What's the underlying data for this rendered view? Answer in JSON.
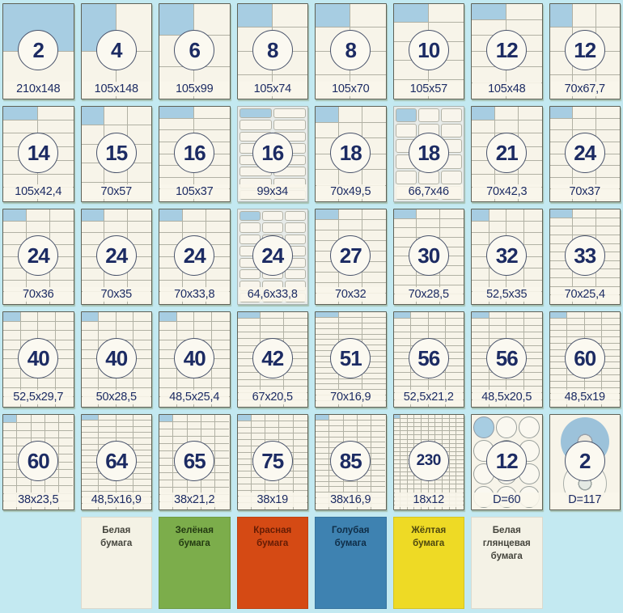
{
  "colors": {
    "page_background": "#c3e9f1",
    "sheet": "#f7f4e9",
    "grid_line": "#b1b1a4",
    "highlight_label": "#a7cde2",
    "number_navy": "#1c2b63"
  },
  "paper_format_cards": [
    {
      "count": "2",
      "size": "210x148",
      "cols": 1,
      "rows": 2,
      "style": "grid"
    },
    {
      "count": "4",
      "size": "105x148",
      "cols": 2,
      "rows": 2,
      "style": "grid"
    },
    {
      "count": "6",
      "size": "105x99",
      "cols": 2,
      "rows": 3,
      "style": "grid"
    },
    {
      "count": "8",
      "size": "105x74",
      "cols": 2,
      "rows": 4,
      "style": "grid"
    },
    {
      "count": "8",
      "size": "105x70",
      "cols": 2,
      "rows": 4,
      "style": "grid"
    },
    {
      "count": "10",
      "size": "105x57",
      "cols": 2,
      "rows": 5,
      "style": "grid"
    },
    {
      "count": "12",
      "size": "105x48",
      "cols": 2,
      "rows": 6,
      "style": "grid"
    },
    {
      "count": "12",
      "size": "70x67,7",
      "cols": 3,
      "rows": 4,
      "style": "grid"
    },
    {
      "count": "14",
      "size": "105x42,4",
      "cols": 2,
      "rows": 7,
      "style": "grid"
    },
    {
      "count": "15",
      "size": "70x57",
      "cols": 3,
      "rows": 5,
      "style": "grid"
    },
    {
      "count": "16",
      "size": "105x37",
      "cols": 2,
      "rows": 8,
      "style": "grid"
    },
    {
      "count": "16",
      "size": "99x34",
      "cols": 2,
      "rows": 8,
      "style": "rounded"
    },
    {
      "count": "18",
      "size": "70x49,5",
      "cols": 3,
      "rows": 6,
      "style": "grid"
    },
    {
      "count": "18",
      "size": "66,7x46",
      "cols": 3,
      "rows": 6,
      "style": "rounded"
    },
    {
      "count": "21",
      "size": "70x42,3",
      "cols": 3,
      "rows": 7,
      "style": "grid"
    },
    {
      "count": "24",
      "size": "70x37",
      "cols": 3,
      "rows": 8,
      "style": "grid"
    },
    {
      "count": "24",
      "size": "70x36",
      "cols": 3,
      "rows": 8,
      "style": "grid"
    },
    {
      "count": "24",
      "size": "70x35",
      "cols": 3,
      "rows": 8,
      "style": "grid"
    },
    {
      "count": "24",
      "size": "70x33,8",
      "cols": 3,
      "rows": 8,
      "style": "grid"
    },
    {
      "count": "24",
      "size": "64,6x33,8",
      "cols": 3,
      "rows": 8,
      "style": "rounded"
    },
    {
      "count": "27",
      "size": "70x32",
      "cols": 3,
      "rows": 9,
      "style": "grid"
    },
    {
      "count": "30",
      "size": "70x28,5",
      "cols": 3,
      "rows": 10,
      "style": "grid"
    },
    {
      "count": "32",
      "size": "52,5x35",
      "cols": 4,
      "rows": 8,
      "style": "grid"
    },
    {
      "count": "33",
      "size": "70x25,4",
      "cols": 3,
      "rows": 11,
      "style": "grid"
    },
    {
      "count": "40",
      "size": "52,5x29,7",
      "cols": 4,
      "rows": 10,
      "style": "grid"
    },
    {
      "count": "40",
      "size": "50x28,5",
      "cols": 4,
      "rows": 10,
      "style": "grid"
    },
    {
      "count": "40",
      "size": "48,5x25,4",
      "cols": 4,
      "rows": 10,
      "style": "grid"
    },
    {
      "count": "42",
      "size": "67x20,5",
      "cols": 3,
      "rows": 14,
      "style": "grid"
    },
    {
      "count": "51",
      "size": "70x16,9",
      "cols": 3,
      "rows": 17,
      "style": "grid"
    },
    {
      "count": "56",
      "size": "52,5x21,2",
      "cols": 4,
      "rows": 14,
      "style": "grid"
    },
    {
      "count": "56",
      "size": "48,5x20,5",
      "cols": 4,
      "rows": 14,
      "style": "grid"
    },
    {
      "count": "60",
      "size": "48,5x19",
      "cols": 4,
      "rows": 15,
      "style": "grid"
    },
    {
      "count": "60",
      "size": "38x23,5",
      "cols": 5,
      "rows": 12,
      "style": "grid"
    },
    {
      "count": "64",
      "size": "48,5x16,9",
      "cols": 4,
      "rows": 16,
      "style": "grid"
    },
    {
      "count": "65",
      "size": "38x21,2",
      "cols": 5,
      "rows": 13,
      "style": "grid"
    },
    {
      "count": "75",
      "size": "38x19",
      "cols": 5,
      "rows": 15,
      "style": "grid"
    },
    {
      "count": "85",
      "size": "38x16,9",
      "cols": 5,
      "rows": 17,
      "style": "grid"
    },
    {
      "count": "230",
      "size": "18x12",
      "cols": 10,
      "rows": 23,
      "style": "grid"
    },
    {
      "count": "12",
      "size": "D=60",
      "cols": 3,
      "rows": 4,
      "style": "circles"
    },
    {
      "count": "2",
      "size": "D=117",
      "cols": 1,
      "rows": 2,
      "style": "cd"
    }
  ],
  "paper_types": [
    {
      "label": "Белая\nбумага",
      "color": "#f4f2e5",
      "text_color": "#44443c"
    },
    {
      "label": "Зелёная\nбумага",
      "color": "#7cad4b",
      "text_color": "#233a12"
    },
    {
      "label": "Красная\nбумага",
      "color": "#d54a14",
      "text_color": "#641c05"
    },
    {
      "label": "Голубая\nбумага",
      "color": "#3e82b1",
      "text_color": "#0f2d47"
    },
    {
      "label": "Жёлтая\nбумага",
      "color": "#eeda25",
      "text_color": "#4d470f"
    },
    {
      "label": "Белая\nглянцевая\nбумага",
      "color": "#f4f2e6",
      "text_color": "#44443c"
    }
  ]
}
